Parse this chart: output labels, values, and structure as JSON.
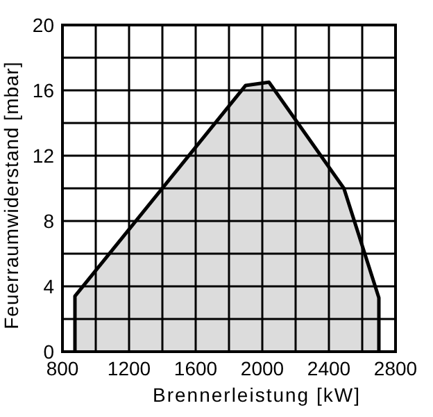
{
  "chart_data": {
    "type": "area",
    "xlabel": "Brennerleistung  [kW]",
    "ylabel": "Feuerraumwiderstand [mbar]",
    "x": [
      875,
      875,
      1900,
      2040,
      2490,
      2700,
      2700
    ],
    "series": [
      {
        "color": "#dcdcdc",
        "values": [
          0,
          3.4,
          16.3,
          16.5,
          10,
          3.3,
          0
        ]
      }
    ],
    "xlim": [
      800,
      2800
    ],
    "xticks": [
      800,
      {
        "value": 1000,
        "label": null
      },
      1200,
      {
        "value": 1400,
        "label": null
      },
      1600,
      {
        "value": 1800,
        "label": null
      },
      2000,
      {
        "value": 2200,
        "label": null
      },
      2400,
      {
        "value": 2600,
        "label": null
      },
      2800
    ],
    "ylim": [
      0,
      20
    ],
    "yticks": [
      0,
      {
        "value": 2,
        "label": null
      },
      4,
      {
        "value": 6,
        "label": null
      },
      8,
      {
        "value": 10,
        "label": null
      },
      12,
      {
        "value": 14,
        "label": null
      },
      16,
      {
        "value": 18,
        "label": null
      },
      20
    ],
    "grid": true
  }
}
